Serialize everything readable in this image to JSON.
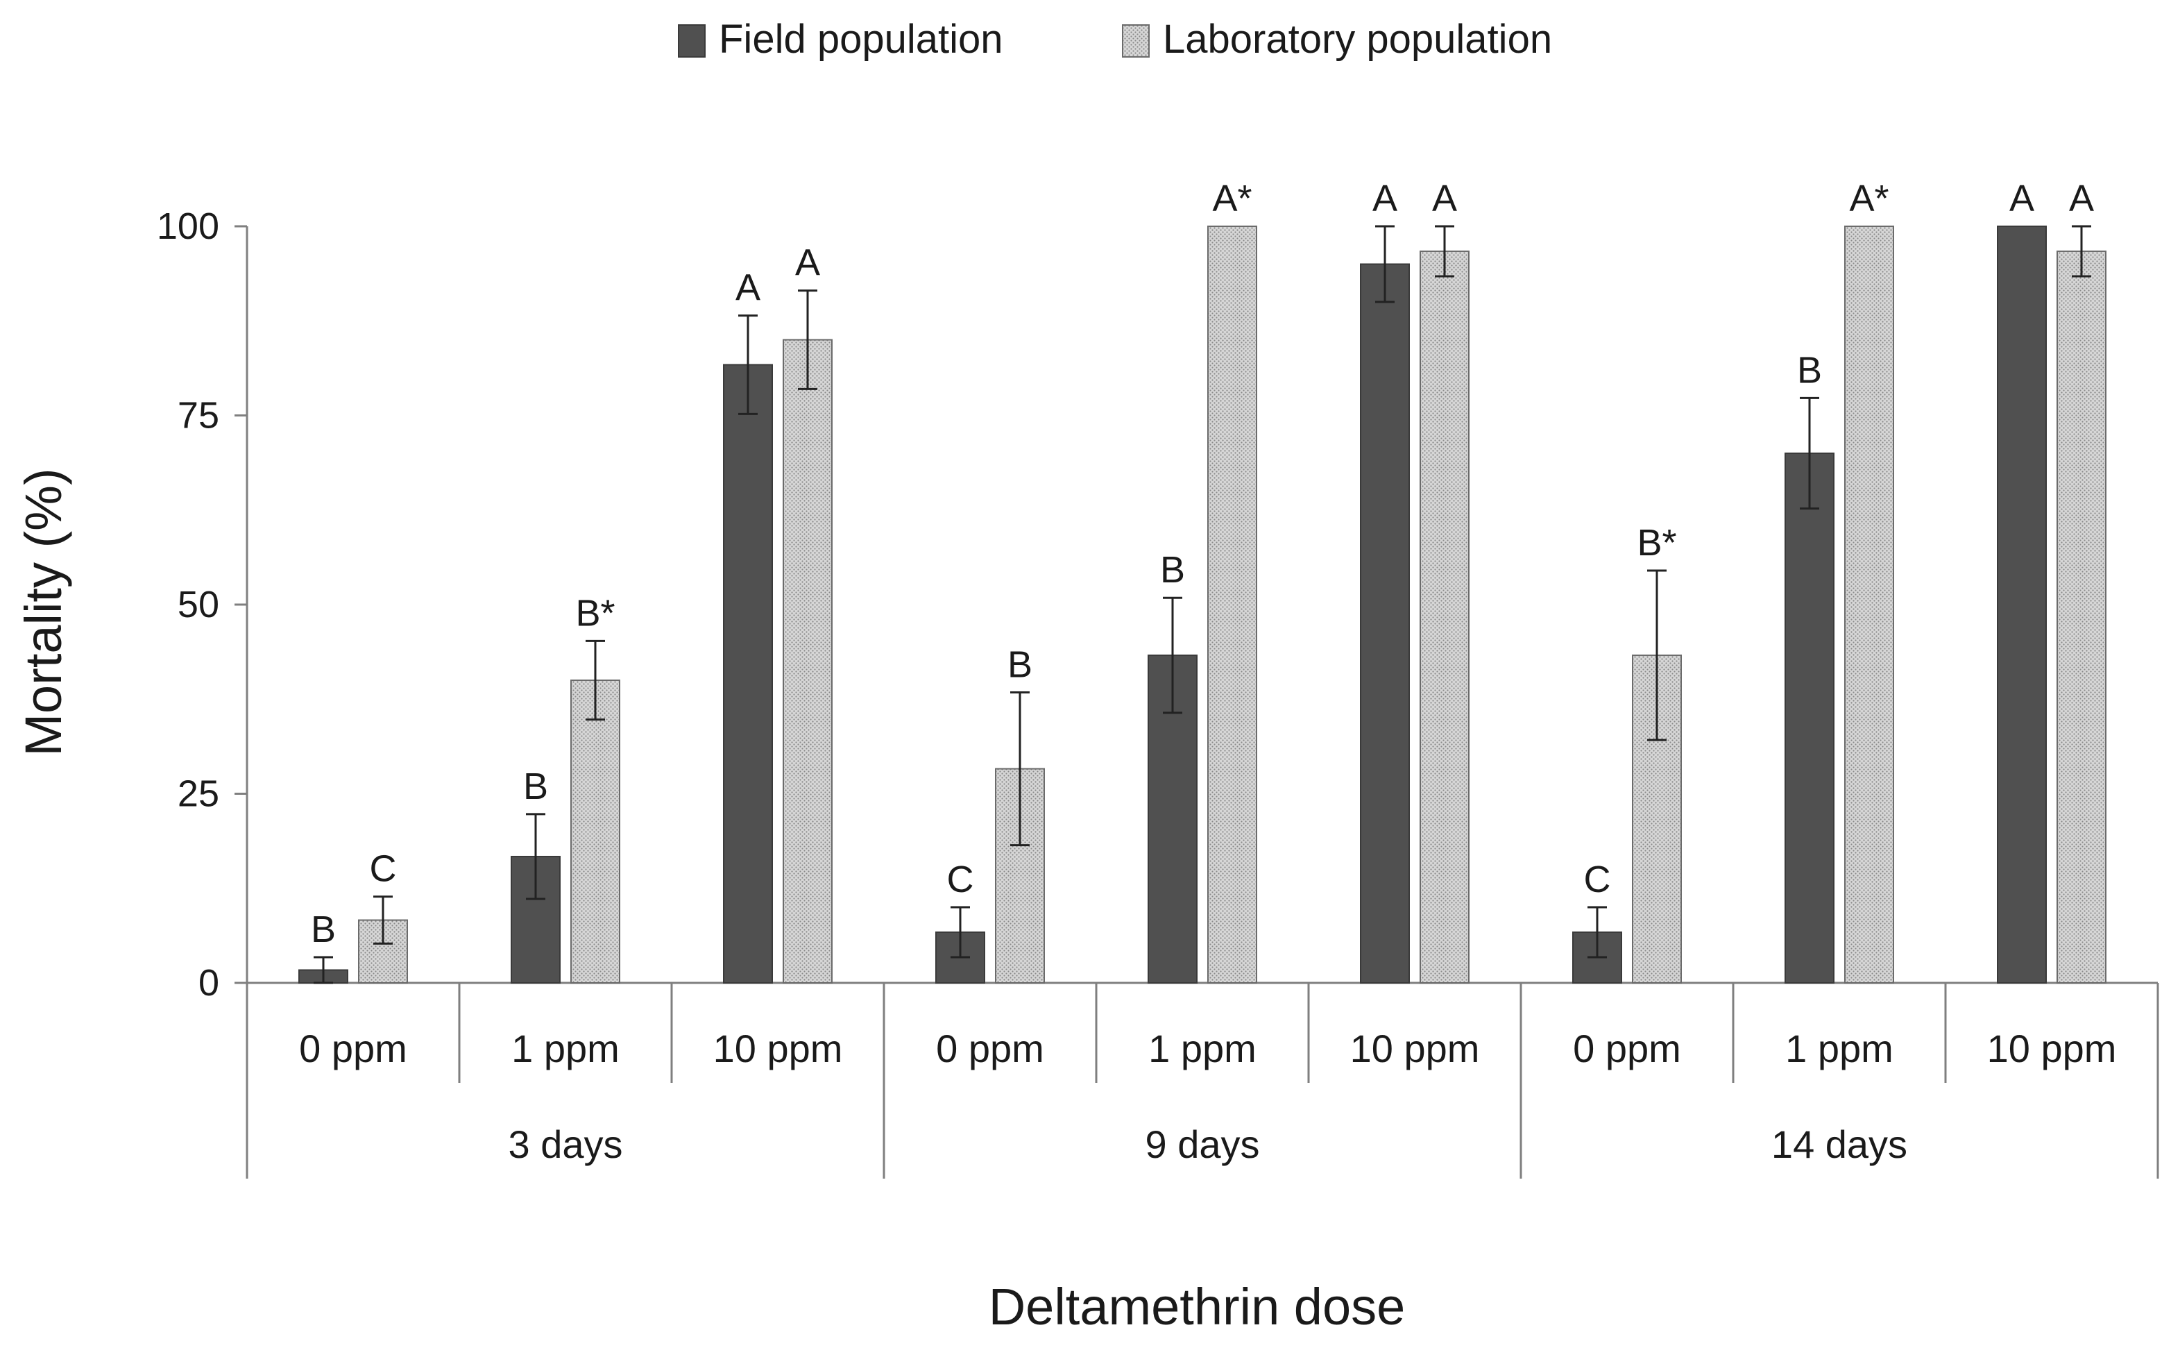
{
  "chart_data": {
    "type": "bar",
    "title": "",
    "xlabel": "Deltamethrin dose",
    "ylabel": "Mortality (%)",
    "ylim": [
      0,
      100
    ],
    "yticks": [
      0,
      25,
      50,
      75,
      100
    ],
    "grid": false,
    "legend_position": "top-center",
    "groups": [
      {
        "label": "3 days",
        "categories": [
          "0 ppm",
          "1 ppm",
          "10 ppm"
        ]
      },
      {
        "label": "9 days",
        "categories": [
          "0 ppm",
          "1 ppm",
          "10 ppm"
        ]
      },
      {
        "label": "14 days",
        "categories": [
          "0 ppm",
          "1 ppm",
          "10 ppm"
        ]
      }
    ],
    "categories": [
      "0 ppm",
      "1 ppm",
      "10 ppm",
      "0 ppm",
      "1 ppm",
      "10 ppm",
      "0 ppm",
      "1 ppm",
      "10 ppm"
    ],
    "series": [
      {
        "name": "Field population",
        "color": "#505050",
        "values": [
          1.7,
          16.7,
          81.7,
          6.7,
          43.3,
          95.0,
          6.7,
          70.0,
          100.0
        ],
        "errors": [
          1.7,
          5.6,
          6.5,
          3.3,
          7.6,
          5.0,
          3.3,
          7.3,
          0.0
        ],
        "labels": [
          "B",
          "B",
          "A",
          "C",
          "B",
          "A",
          "C",
          "B",
          "A"
        ]
      },
      {
        "name": "Laboratory population",
        "color": "#c8c8c8",
        "values": [
          8.3,
          40.0,
          85.0,
          28.3,
          100.0,
          96.7,
          43.3,
          100.0,
          96.7
        ],
        "errors": [
          3.1,
          5.2,
          6.5,
          10.1,
          0.0,
          3.3,
          11.2,
          0.0,
          3.3
        ],
        "labels": [
          "C",
          "B*",
          "A",
          "B",
          "A*",
          "A",
          "B*",
          "A*",
          "A"
        ]
      }
    ]
  }
}
